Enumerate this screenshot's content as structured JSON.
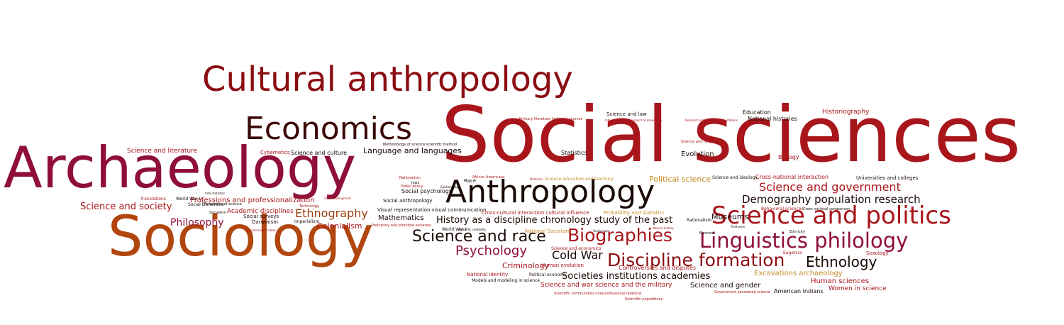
{
  "colors": {
    "crimson": "#a8151b",
    "darkred": "#8b0d12",
    "maroon": "#8f0f3a",
    "brown": "#3b0a06",
    "orange": "#b2460f",
    "darkorange": "#9b3c0c",
    "black": "#1a0a05",
    "gold": "#c28a1f",
    "purple": "#7a1240"
  },
  "words": [
    {
      "text": "Social sciences",
      "weight": 1.0
    },
    {
      "text": "Archaeology",
      "weight": 0.72
    },
    {
      "text": "Sociology",
      "weight": 0.7
    },
    {
      "text": "Cultural anthropology",
      "weight": 0.44
    },
    {
      "text": "Economics",
      "weight": 0.41
    },
    {
      "text": "Anthropology",
      "weight": 0.39
    },
    {
      "text": "Science and politics",
      "weight": 0.31
    },
    {
      "text": "Linguistics philology",
      "weight": 0.26
    },
    {
      "text": "Discipline formation",
      "weight": 0.23
    },
    {
      "text": "Biographies",
      "weight": 0.23
    },
    {
      "text": "Science and race",
      "weight": 0.2
    },
    {
      "text": "Ethnology",
      "weight": 0.18
    },
    {
      "text": "Psychology",
      "weight": 0.16
    },
    {
      "text": "Science and government",
      "weight": 0.14
    },
    {
      "text": "Ethnography",
      "weight": 0.14
    },
    {
      "text": "Demography population research",
      "weight": 0.13
    },
    {
      "text": "Philosophy",
      "weight": 0.12
    },
    {
      "text": "History as a discipline chronology study of the past",
      "weight": 0.12
    },
    {
      "text": "Societies institutions academies",
      "weight": 0.12
    },
    {
      "text": "Cold War",
      "weight": 0.14
    },
    {
      "text": "Science and society",
      "weight": 0.12
    },
    {
      "text": "Colonialism",
      "weight": 0.09
    },
    {
      "text": "Museums",
      "weight": 0.1
    },
    {
      "text": "Criminology",
      "weight": 0.09
    },
    {
      "text": "Evolution",
      "weight": 0.08
    },
    {
      "text": "Language and languages",
      "weight": 0.08
    },
    {
      "text": "Mathematics",
      "weight": 0.07
    },
    {
      "text": "Professions and professionalization",
      "weight": 0.07
    },
    {
      "text": "Academic disciplines",
      "weight": 0.07
    },
    {
      "text": "Political science",
      "weight": 0.08
    },
    {
      "text": "Science and gender",
      "weight": 0.07
    },
    {
      "text": "Human sciences",
      "weight": 0.07
    },
    {
      "text": "Excavations archaeology",
      "weight": 0.07
    },
    {
      "text": "Science and war science and the military",
      "weight": 0.06
    },
    {
      "text": "Women in science",
      "weight": 0.06
    },
    {
      "text": "American Indians",
      "weight": 0.06
    },
    {
      "text": "Science and literature",
      "weight": 0.06
    },
    {
      "text": "Science and culture",
      "weight": 0.06
    },
    {
      "text": "Historiography",
      "weight": 0.06
    },
    {
      "text": "National histories",
      "weight": 0.05
    },
    {
      "text": "Education",
      "weight": 0.05
    },
    {
      "text": "Statistics",
      "weight": 0.05
    },
    {
      "text": "Biology",
      "weight": 0.05
    },
    {
      "text": "Science and law",
      "weight": 0.05
    },
    {
      "text": "Universities and colleges",
      "weight": 0.05
    },
    {
      "text": "Cross-national interaction",
      "weight": 0.05
    },
    {
      "text": "Social psychology",
      "weight": 0.05
    },
    {
      "text": "Social anthropology",
      "weight": 0.04
    },
    {
      "text": "Visual representation visual communication",
      "weight": 0.04
    },
    {
      "text": "Cross-cultural interaction cultural influence",
      "weight": 0.04
    },
    {
      "text": "Probability and statistics",
      "weight": 0.04
    },
    {
      "text": "Science education and teaching",
      "weight": 0.04
    },
    {
      "text": "Cybernetics",
      "weight": 0.04
    },
    {
      "text": "Darwinism",
      "weight": 0.04
    },
    {
      "text": "Social surveys",
      "weight": 0.04
    },
    {
      "text": "Social Darwinism",
      "weight": 0.03
    },
    {
      "text": "Imperialism",
      "weight": 0.03
    },
    {
      "text": "World War II",
      "weight": 0.03
    },
    {
      "text": "World War I",
      "weight": 0.03
    },
    {
      "text": "Race",
      "weight": 0.03
    },
    {
      "text": "Controversies and disputes",
      "weight": 0.04
    },
    {
      "text": "National Socialism",
      "weight": 0.04
    },
    {
      "text": "Human evolution",
      "weight": 0.03
    },
    {
      "text": "National identity",
      "weight": 0.03
    },
    {
      "text": "Political economy",
      "weight": 0.03
    },
    {
      "text": "Models and modeling in science",
      "weight": 0.03
    },
    {
      "text": "Scientific communities interprofessional relations",
      "weight": 0.03
    },
    {
      "text": "Scientific expeditions",
      "weight": 0.03
    },
    {
      "text": "Government sponsored science",
      "weight": 0.03
    },
    {
      "text": "Sexology",
      "weight": 0.03
    },
    {
      "text": "Eugenics",
      "weight": 0.03
    },
    {
      "text": "Rationalism",
      "weight": 0.03
    },
    {
      "text": "Marxism",
      "weight": 0.03
    },
    {
      "text": "Ethnicity",
      "weight": 0.03
    },
    {
      "text": "Science and ideology",
      "weight": 0.03
    },
    {
      "text": "Behavioral sciences",
      "weight": 0.03
    },
    {
      "text": "Cross national comparison",
      "weight": 0.02
    },
    {
      "text": "Science and economics",
      "weight": 0.03
    },
    {
      "text": "Translations",
      "weight": 0.03
    },
    {
      "text": "Philosophy of science",
      "weight": 0.03
    },
    {
      "text": "Socialism",
      "weight": 0.03
    },
    {
      "text": "Technology",
      "weight": 0.03
    },
    {
      "text": "Prehistory and primitive societies",
      "weight": 0.03
    },
    {
      "text": "Methodology of science scientific method",
      "weight": 0.03
    },
    {
      "text": "Primary literature historical sources",
      "weight": 0.02
    },
    {
      "text": "Interdisciplinary approach to knowledge",
      "weight": 0.02
    },
    {
      "text": "Research institutes research stations",
      "weight": 0.02
    },
    {
      "text": "Science and religion",
      "weight": 0.02
    },
    {
      "text": "Public policy",
      "weight": 0.02
    },
    {
      "text": "Nationalism",
      "weight": 0.02
    },
    {
      "text": "Jews",
      "weight": 0.02
    },
    {
      "text": "African Americans",
      "weight": 0.02
    },
    {
      "text": "Epistemology",
      "weight": 0.02
    },
    {
      "text": "Medicine",
      "weight": 0.02
    },
    {
      "text": "Social class",
      "weight": 0.02
    },
    {
      "text": "Natural history",
      "weight": 0.02
    },
    {
      "text": "Field work",
      "weight": 0.02
    },
    {
      "text": "Vital statistics",
      "weight": 0.02
    },
    {
      "text": "Child development",
      "weight": 0.02
    },
    {
      "text": "Transmission of ideas",
      "weight": 0.02
    },
    {
      "text": "Scientific credibility",
      "weight": 0.02
    }
  ]
}
